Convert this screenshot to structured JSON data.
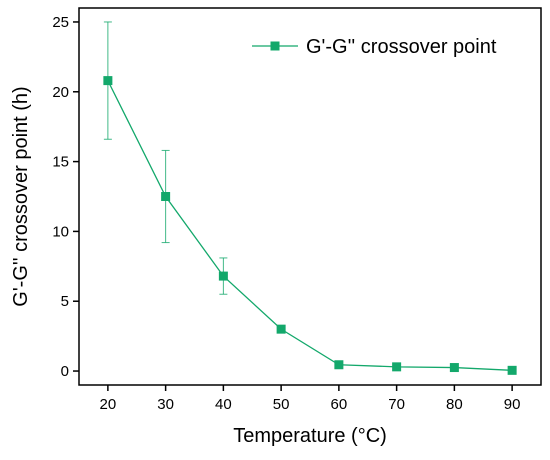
{
  "chart_data": {
    "type": "line",
    "xlabel": "Temperature (°C)",
    "ylabel": "G'-G'' crossover point (h)",
    "xlim": [
      15,
      95
    ],
    "ylim": [
      -1,
      26
    ],
    "xticks": [
      20,
      30,
      40,
      50,
      60,
      70,
      80,
      90
    ],
    "yticks": [
      0,
      5,
      10,
      15,
      20,
      25
    ],
    "grid": false,
    "legend_position": "top-right",
    "series": [
      {
        "name": "G'-G'' crossover point",
        "color": "#13a86b",
        "marker": "square",
        "x": [
          20,
          30,
          40,
          50,
          60,
          70,
          80,
          90
        ],
        "y": [
          20.8,
          12.5,
          6.8,
          3.0,
          0.45,
          0.3,
          0.25,
          0.05
        ],
        "error": [
          4.2,
          3.3,
          1.3,
          0.1,
          0.05,
          0.05,
          0.05,
          0.05
        ]
      }
    ]
  }
}
